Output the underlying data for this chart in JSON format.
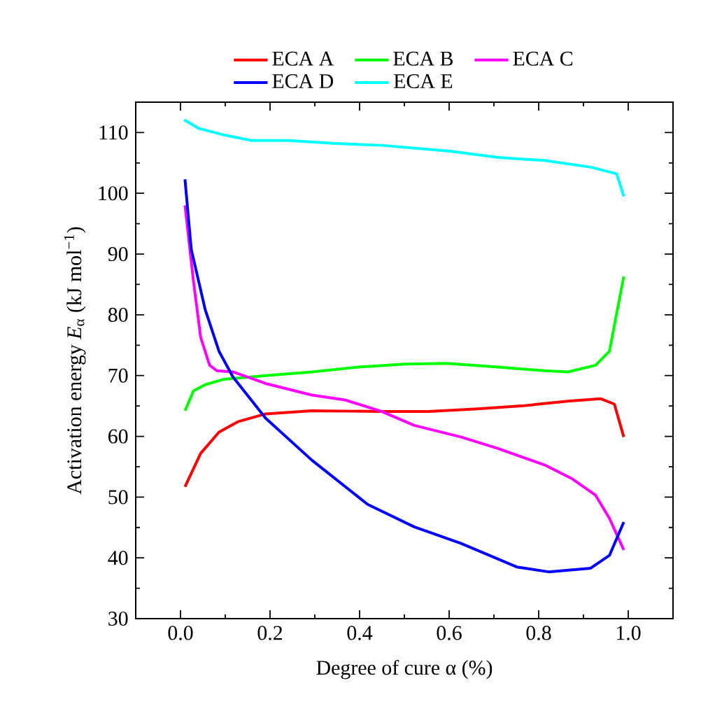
{
  "chart_data": {
    "type": "line",
    "xlabel": "Degree of cure α (%)",
    "ylabel": "Activation energy *E*$_{α}$ (kJ mol$^{−1}$)",
    "xlim": [
      -0.1,
      1.1
    ],
    "ylim": [
      30,
      115
    ],
    "xticks": [
      {
        "value": 0,
        "label": "0.0"
      },
      {
        "value": 0.2,
        "label": "0.2"
      },
      {
        "value": 0.4,
        "label": "0.4"
      },
      {
        "value": 0.6,
        "label": "0.6"
      },
      {
        "value": 0.8,
        "label": "0.8"
      },
      {
        "value": 1,
        "label": "1.0"
      }
    ],
    "yticks": [
      30,
      40,
      50,
      60,
      70,
      80,
      90,
      100,
      110
    ],
    "grid": false,
    "legend": "top",
    "marker": "none",
    "line_style": "solid",
    "series": [
      {
        "name": "ECA A",
        "color": "#ff0000",
        "x": [
          0.01,
          0.045,
          0.086,
          0.128,
          0.19,
          0.293,
          0.449,
          0.553,
          0.657,
          0.761,
          0.865,
          0.938,
          0.969,
          0.99
        ],
        "values": [
          51.7,
          57.2,
          60.7,
          62.4,
          63.7,
          64.2,
          64.1,
          64.1,
          64.5,
          65,
          65.8,
          66.2,
          65.3,
          59.9
        ]
      },
      {
        "name": "ECA B",
        "color": "#00ff00",
        "x": [
          0.01,
          0.029,
          0.055,
          0.097,
          0.19,
          0.293,
          0.398,
          0.502,
          0.595,
          0.709,
          0.813,
          0.865,
          0.927,
          0.958,
          0.974,
          0.99
        ],
        "values": [
          64.2,
          67.5,
          68.5,
          69.4,
          70,
          70.6,
          71.4,
          71.9,
          72,
          71.4,
          70.8,
          70.6,
          71.7,
          74,
          80.2,
          86.3
        ]
      },
      {
        "name": "ECA C",
        "color": "#ff00ff",
        "x": [
          0.01,
          0.029,
          0.045,
          0.065,
          0.081,
          0.117,
          0.19,
          0.293,
          0.367,
          0.449,
          0.522,
          0.626,
          0.709,
          0.813,
          0.875,
          0.927,
          0.958,
          0.99
        ],
        "values": [
          98,
          85.5,
          76.3,
          71.7,
          70.8,
          70.6,
          68.7,
          66.8,
          66,
          64.1,
          61.8,
          59.9,
          58,
          55.3,
          53,
          50.3,
          46.5,
          41.3
        ]
      },
      {
        "name": "ECA D",
        "color": "#0000ff",
        "x": [
          0.01,
          0.024,
          0.055,
          0.086,
          0.117,
          0.19,
          0.293,
          0.418,
          0.522,
          0.626,
          0.751,
          0.822,
          0.916,
          0.958,
          0.99
        ],
        "values": [
          102.3,
          90.8,
          80.9,
          74,
          69.8,
          63,
          56.1,
          48.8,
          45.1,
          42.4,
          38.5,
          37.7,
          38.3,
          40.4,
          45.9
        ]
      },
      {
        "name": "ECA E",
        "color": "#00ffff",
        "x": [
          0.008,
          0.04,
          0.097,
          0.159,
          0.24,
          0.346,
          0.449,
          0.605,
          0.71,
          0.813,
          0.916,
          0.974,
          0.99
        ],
        "values": [
          112.1,
          110.7,
          109.6,
          108.7,
          108.7,
          108.2,
          107.9,
          106.9,
          105.9,
          105.4,
          104.3,
          103.2,
          99.5
        ]
      }
    ]
  }
}
